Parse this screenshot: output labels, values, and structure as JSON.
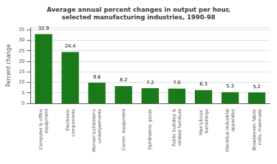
{
  "chart_data": {
    "type": "bar",
    "title": "Average annual percent changes in output per hour,\nselected manufacturing industries, 1990-98",
    "categories": [
      "Computer & office\nequipment",
      "Electronic\ncomponents",
      "Women's/children's\nundergarments",
      "Comm. equipment",
      "Ophthalmic goods",
      "Public building &\nrelated furniture",
      "Men's/boys'\nfurnishings",
      "Electrical industrial\napparatus",
      "Broadwoven fabric\nmills, manmade"
    ],
    "values": [
      32.9,
      24.4,
      9.8,
      8.2,
      7.2,
      7.0,
      6.3,
      5.3,
      5.2
    ],
    "value_labels": [
      "32.9",
      "24.4",
      "9.8",
      "8.2",
      "7.2",
      "7.0",
      "6.3",
      "5.3",
      "5.2"
    ],
    "color": "#1a7a1a",
    "ylabel": "Percent change",
    "ylim": [
      0,
      36
    ],
    "yticks": [
      0,
      5,
      10,
      15,
      20,
      25,
      30,
      35
    ],
    "grid": true,
    "data_labels": true
  }
}
